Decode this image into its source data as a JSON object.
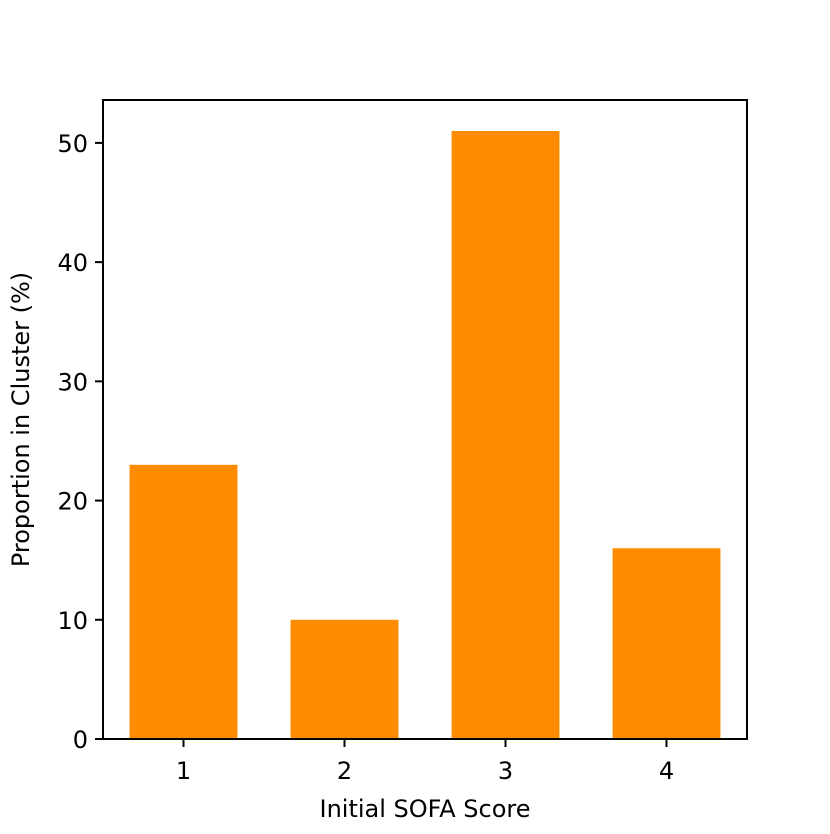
{
  "chart_data": {
    "type": "bar",
    "categories": [
      "1",
      "2",
      "3",
      "4"
    ],
    "values": [
      23,
      10,
      51,
      16
    ],
    "title": "",
    "xlabel": "Initial SOFA Score",
    "ylabel": "Proportion in Cluster (%)",
    "ylim": [
      0,
      53.6
    ],
    "yticks": [
      "0",
      "10",
      "20",
      "30",
      "40",
      "50"
    ],
    "grid": false,
    "bar_color": "#ff8c00"
  }
}
